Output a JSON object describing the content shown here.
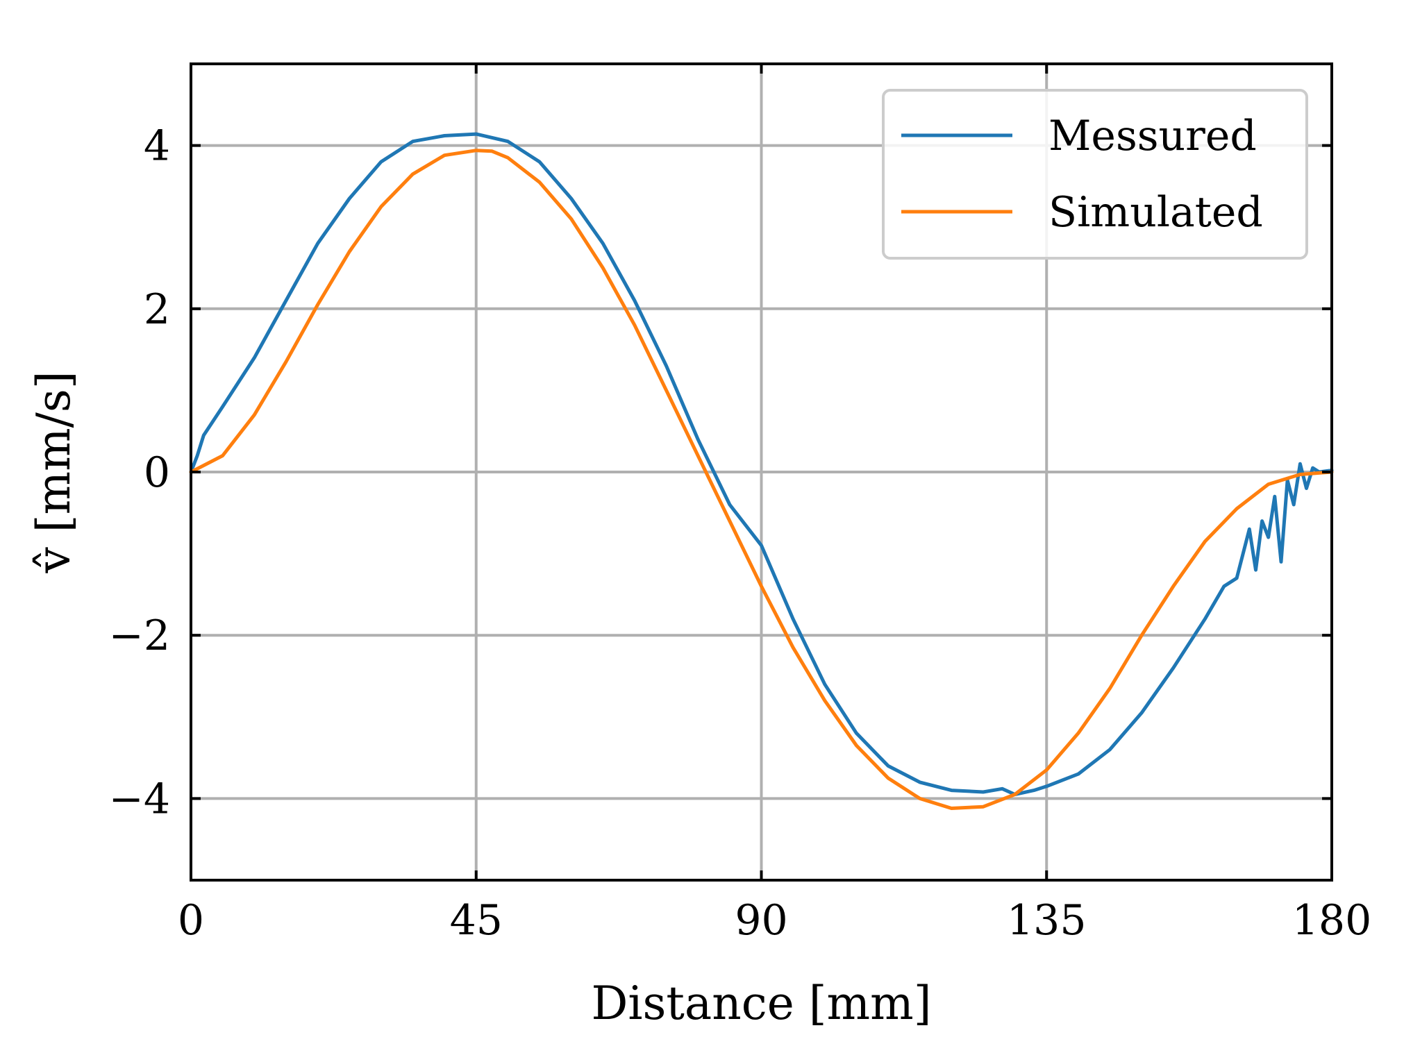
{
  "chart_data": {
    "type": "line",
    "xlabel": "Distance [mm]",
    "ylabel": "v̂ [mm/s]",
    "xlim": [
      0,
      180
    ],
    "ylim": [
      -5,
      5
    ],
    "xticks": [
      0,
      45,
      90,
      135,
      180
    ],
    "xtick_labels": [
      "0",
      "45",
      "90",
      "135",
      "180"
    ],
    "yticks": [
      -4,
      -2,
      0,
      2,
      4
    ],
    "ytick_labels": [
      "−4",
      "−2",
      "0",
      "2",
      "4"
    ],
    "grid": true,
    "legend_position": "top-right",
    "series": [
      {
        "name": "Messured",
        "color": "#1f77b4",
        "x": [
          0,
          1,
          2,
          5,
          10,
          15,
          20,
          25,
          30,
          35,
          40,
          45,
          50,
          55,
          60,
          65,
          70,
          75,
          80,
          85,
          90,
          95,
          100,
          105,
          110,
          115,
          120,
          125,
          128,
          130,
          133,
          135,
          140,
          145,
          150,
          155,
          160,
          163,
          165,
          166,
          167,
          168,
          169,
          170,
          171,
          172,
          173,
          174,
          175,
          176,
          177,
          178,
          180
        ],
        "y": [
          0,
          0.2,
          0.45,
          0.8,
          1.4,
          2.1,
          2.8,
          3.35,
          3.8,
          4.05,
          4.12,
          4.14,
          4.05,
          3.8,
          3.35,
          2.8,
          2.1,
          1.3,
          0.4,
          -0.4,
          -0.9,
          -1.8,
          -2.6,
          -3.2,
          -3.6,
          -3.8,
          -3.9,
          -3.92,
          -3.88,
          -3.95,
          -3.9,
          -3.85,
          -3.7,
          -3.4,
          -2.95,
          -2.4,
          -1.8,
          -1.4,
          -1.3,
          -1.0,
          -0.7,
          -1.2,
          -0.6,
          -0.8,
          -0.3,
          -1.1,
          -0.1,
          -0.4,
          0.1,
          -0.2,
          0.05,
          0.0,
          0.02
        ]
      },
      {
        "name": "Simulated",
        "color": "#ff7f0e",
        "x": [
          0,
          5,
          10,
          15,
          20,
          25,
          30,
          35,
          40,
          45,
          47.5,
          50,
          55,
          60,
          65,
          70,
          75,
          80,
          85,
          90,
          95,
          100,
          105,
          110,
          115,
          120,
          125,
          130,
          135,
          140,
          145,
          150,
          155,
          160,
          165,
          170,
          175,
          180
        ],
        "y": [
          0,
          0.2,
          0.7,
          1.35,
          2.05,
          2.7,
          3.25,
          3.65,
          3.88,
          3.94,
          3.93,
          3.85,
          3.55,
          3.1,
          2.5,
          1.8,
          1.0,
          0.2,
          -0.6,
          -1.4,
          -2.15,
          -2.8,
          -3.35,
          -3.75,
          -4.0,
          -4.12,
          -4.1,
          -3.95,
          -3.65,
          -3.2,
          -2.65,
          -2.0,
          -1.4,
          -0.85,
          -0.45,
          -0.15,
          -0.03,
          0.0
        ]
      }
    ]
  }
}
